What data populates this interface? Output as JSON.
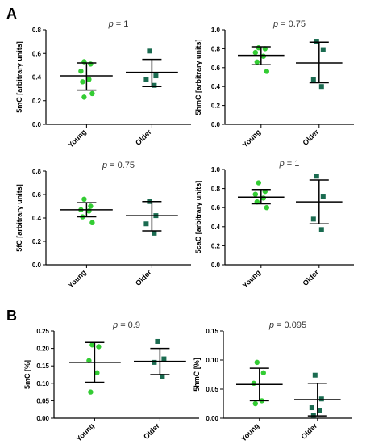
{
  "panel_labels": {
    "A": "A",
    "B": "B"
  },
  "colors": {
    "young": "#33cc33",
    "older": "#1a6b50",
    "axis": "#000000",
    "ptext": "#333333"
  },
  "chart_data": [
    {
      "type": "scatter",
      "panel": "A",
      "title": "p = 1",
      "ylabel": "5mC [arbitrary units]",
      "categories": [
        "Young",
        "Older"
      ],
      "ylim": [
        0.0,
        0.8
      ],
      "yticks": [
        "0.0",
        "0.2",
        "0.4",
        "0.6",
        "0.8"
      ],
      "series": [
        {
          "name": "Young",
          "values": [
            0.53,
            0.51,
            0.45,
            0.38,
            0.36,
            0.26,
            0.23
          ],
          "mean": 0.41,
          "sd_low": 0.29,
          "sd_high": 0.52
        },
        {
          "name": "Older",
          "values": [
            0.62,
            0.41,
            0.38,
            0.33
          ],
          "mean": 0.44,
          "sd_low": 0.32,
          "sd_high": 0.55
        }
      ]
    },
    {
      "type": "scatter",
      "panel": "A",
      "title": "p = 0.75",
      "ylabel": "5hmC [arbitrary units]",
      "categories": [
        "Young",
        "Older"
      ],
      "ylim": [
        0.0,
        1.0
      ],
      "yticks": [
        "0.0",
        "0.2",
        "0.4",
        "0.6",
        "0.8",
        "1.0"
      ],
      "series": [
        {
          "name": "Young",
          "values": [
            0.81,
            0.8,
            0.76,
            0.72,
            0.66,
            0.56
          ],
          "mean": 0.73,
          "sd_low": 0.63,
          "sd_high": 0.82
        },
        {
          "name": "Older",
          "values": [
            0.88,
            0.79,
            0.47,
            0.4
          ],
          "mean": 0.65,
          "sd_low": 0.44,
          "sd_high": 0.87
        }
      ]
    },
    {
      "type": "scatter",
      "panel": "A",
      "title": "p = 0.75",
      "ylabel": "5fC [arbitrary units]",
      "categories": [
        "Young",
        "Older"
      ],
      "ylim": [
        0.0,
        0.8
      ],
      "yticks": [
        "0.0",
        "0.2",
        "0.4",
        "0.6",
        "0.8"
      ],
      "series": [
        {
          "name": "Young",
          "values": [
            0.56,
            0.5,
            0.47,
            0.46,
            0.41,
            0.36
          ],
          "mean": 0.47,
          "sd_low": 0.41,
          "sd_high": 0.53
        },
        {
          "name": "Older",
          "values": [
            0.54,
            0.42,
            0.35,
            0.27
          ],
          "mean": 0.42,
          "sd_low": 0.29,
          "sd_high": 0.54
        }
      ]
    },
    {
      "type": "scatter",
      "panel": "A",
      "title": "p = 1",
      "ylabel": "5caC [arbitrary units]",
      "categories": [
        "Young",
        "Older"
      ],
      "ylim": [
        0.0,
        1.0
      ],
      "yticks": [
        "0.0",
        "0.2",
        "0.4",
        "0.6",
        "0.8",
        "1.0"
      ],
      "series": [
        {
          "name": "Young",
          "values": [
            0.86,
            0.77,
            0.74,
            0.7,
            0.66,
            0.6
          ],
          "mean": 0.71,
          "sd_low": 0.64,
          "sd_high": 0.79
        },
        {
          "name": "Older",
          "values": [
            0.93,
            0.72,
            0.48,
            0.37
          ],
          "mean": 0.66,
          "sd_low": 0.43,
          "sd_high": 0.89
        }
      ]
    },
    {
      "type": "scatter",
      "panel": "B",
      "title": "p = 0.9",
      "ylabel": "5mC [%]",
      "categories": [
        "Young",
        "Older"
      ],
      "ylim": [
        0.0,
        0.25
      ],
      "yticks": [
        "0.00",
        "0.05",
        "0.10",
        "0.15",
        "0.20",
        "0.25"
      ],
      "series": [
        {
          "name": "Young",
          "values": [
            0.21,
            0.205,
            0.165,
            0.13,
            0.075
          ],
          "mean": 0.16,
          "sd_low": 0.103,
          "sd_high": 0.217
        },
        {
          "name": "Older",
          "values": [
            0.22,
            0.17,
            0.16,
            0.12
          ],
          "mean": 0.163,
          "sd_low": 0.125,
          "sd_high": 0.2
        }
      ]
    },
    {
      "type": "scatter",
      "panel": "B",
      "title": "p = 0.095",
      "ylabel": "5hmC [%]",
      "categories": [
        "Young",
        "Older"
      ],
      "ylim": [
        0.0,
        0.15
      ],
      "yticks": [
        "0.00",
        "0.05",
        "0.10",
        "0.15"
      ],
      "series": [
        {
          "name": "Young",
          "values": [
            0.096,
            0.078,
            0.06,
            0.03,
            0.025
          ],
          "mean": 0.058,
          "sd_low": 0.03,
          "sd_high": 0.086
        },
        {
          "name": "Older",
          "values": [
            0.074,
            0.033,
            0.018,
            0.013,
            0.005
          ],
          "mean": 0.032,
          "sd_low": 0.004,
          "sd_high": 0.06
        }
      ]
    }
  ]
}
